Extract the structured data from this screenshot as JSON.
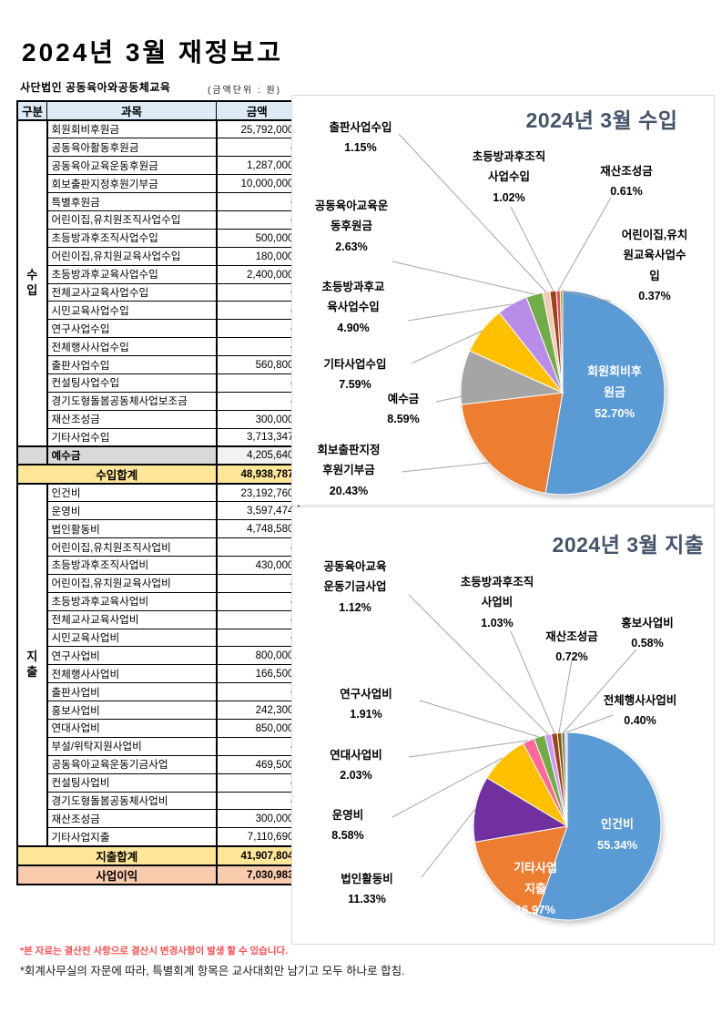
{
  "page": {
    "title": "2024년  3월  재정보고",
    "org_name": "사단법인  공동육아와공동체교육",
    "unit_note": "(금액단위 : 원)",
    "footnotes": [
      {
        "text": "*본 자료는 결산전 사항으로 결산시 변경사항이 발생 할 수 있습니다.",
        "color": "#FF4F4F"
      },
      {
        "text": "*회계사무실의 자문에 따라, 특별회계 항목은 교사대회만 남기고 모두 하나로 합침.",
        "color": "#1A1A1A"
      }
    ]
  },
  "table": {
    "headers": {
      "category": "구분",
      "account": "과목",
      "amount": "금액"
    },
    "income_group_label": "수입",
    "expense_group_label": "지출",
    "income_rows": [
      {
        "account": "회원회비후원금",
        "amount": "25,792,000"
      },
      {
        "account": "공동육아활동후원금",
        "amount": "-"
      },
      {
        "account": "공동육아교육운동후원금",
        "amount": "1,287,000"
      },
      {
        "account": "회보출판지정후원기부금",
        "amount": "10,000,000"
      },
      {
        "account": "특별후원금",
        "amount": "-"
      },
      {
        "account": "어린이집,유치원조직사업수입",
        "amount": "-"
      },
      {
        "account": "초등방과후조직사업수입",
        "amount": "500,000"
      },
      {
        "account": "어린이집,유치원교육사업수입",
        "amount": "180,000"
      },
      {
        "account": "초등방과후교육사업수입",
        "amount": "2,400,000"
      },
      {
        "account": "전체교사교육사업수입",
        "amount": "-"
      },
      {
        "account": "시민교육사업수입",
        "amount": "-"
      },
      {
        "account": "연구사업수입",
        "amount": "-"
      },
      {
        "account": "전체행사사업수입",
        "amount": "-"
      },
      {
        "account": "출판사업수입",
        "amount": "560,800"
      },
      {
        "account": "컨설팅사업수입",
        "amount": "-"
      },
      {
        "account": "경기도형돌봄공동체사업보조금",
        "amount": "-"
      },
      {
        "account": "재산조성금",
        "amount": "300,000"
      },
      {
        "account": "기타사업수입",
        "amount": "3,713,347"
      }
    ],
    "deposit_row": {
      "account": "예수금",
      "amount": "4,205,640"
    },
    "income_total": {
      "label": "수입합계",
      "amount": "48,938,787"
    },
    "expense_rows": [
      {
        "account": "인건비",
        "amount": "23,192,760"
      },
      {
        "account": "운영비",
        "amount": "3,597,474"
      },
      {
        "account": "법인활동비",
        "amount": "4,748,580"
      },
      {
        "account": "어린이집,유치원조직사업비",
        "amount": "-"
      },
      {
        "account": "초등방과후조직사업비",
        "amount": "430,000"
      },
      {
        "account": "어린이집,유치원교육사업비",
        "amount": "-"
      },
      {
        "account": "초등방과후교육사업비",
        "amount": "-"
      },
      {
        "account": "전체교사교육사업비",
        "amount": "-"
      },
      {
        "account": "시민교육사업비",
        "amount": "-"
      },
      {
        "account": "연구사업비",
        "amount": "800,000"
      },
      {
        "account": "전체행사사업비",
        "amount": "166,500"
      },
      {
        "account": "출판사업비",
        "amount": "-"
      },
      {
        "account": "홍보사업비",
        "amount": "242,300"
      },
      {
        "account": "연대사업비",
        "amount": "850,000"
      },
      {
        "account": "부설/위탁지원사업비",
        "amount": "-"
      },
      {
        "account": "공동육아교육운동기금사업",
        "amount": "469,500"
      },
      {
        "account": "컨설팅사업비",
        "amount": "-"
      },
      {
        "account": "경기도형돌봄공동체사업비",
        "amount": "-"
      },
      {
        "account": "재산조성금",
        "amount": "300,000"
      },
      {
        "account": "기타사업지출",
        "amount": "7,110,690"
      }
    ],
    "expense_total": {
      "label": "지출합계",
      "amount": "41,907,804"
    },
    "profit": {
      "label": "사업이익",
      "amount": "7,030,983"
    }
  },
  "chart_data": [
    {
      "type": "pie",
      "title": "2024년 3월 수입",
      "legend": "none",
      "slices": [
        {
          "name": "회원회비후원금",
          "pct": "52.70",
          "color": "#5B9BD5",
          "lines": [
            "회원회비후",
            "원금"
          ]
        },
        {
          "name": "회보출판지정후원기부금",
          "pct": "20.43",
          "color": "#ED7D31",
          "lines": [
            "회보출판지정",
            "후원기부금"
          ]
        },
        {
          "name": "예수금",
          "pct": "8.59",
          "color": "#A5A5A5",
          "lines": [
            "예수금"
          ]
        },
        {
          "name": "기타사업수입",
          "pct": "7.59",
          "color": "#FFC000",
          "lines": [
            "기타사업수입"
          ]
        },
        {
          "name": "초등방과후교육사업수입",
          "pct": "4.90",
          "color": "#B88CE8",
          "lines": [
            "초등방과후교",
            "육사업수입"
          ]
        },
        {
          "name": "공동육아교육운동후원금",
          "pct": "2.63",
          "color": "#70AD47",
          "lines": [
            "공동육아교육운",
            "동후원금"
          ]
        },
        {
          "name": "출판사업수입",
          "pct": "1.15",
          "color": "#F4C7B8",
          "lines": [
            "출판사업수입"
          ]
        },
        {
          "name": "초등방과후조직사업수입",
          "pct": "1.02",
          "color": "#9E4417",
          "lines": [
            "초등방과후조직",
            "사업수입"
          ]
        },
        {
          "name": "재산조성금",
          "pct": "0.61",
          "color": "#EA4A69",
          "lines": [
            "재산조성금"
          ]
        },
        {
          "name": "어린이집,유치원교육사업수입",
          "pct": "0.37",
          "color": "#AFA100",
          "lines": [
            "어린이집,유치",
            "원교육사업수",
            "입"
          ]
        }
      ]
    },
    {
      "type": "pie",
      "title": "2024년 3월 지출",
      "legend": "none",
      "slices": [
        {
          "name": "인건비",
          "pct": "55.34",
          "color": "#5B9BD5",
          "lines": [
            "인건비"
          ]
        },
        {
          "name": "기타사업지출",
          "pct": "16.97",
          "color": "#ED7D31",
          "lines": [
            "기타사업",
            "지출"
          ]
        },
        {
          "name": "법인활동비",
          "pct": "11.33",
          "color": "#7030A0",
          "lines": [
            "법인활동비"
          ]
        },
        {
          "name": "운영비",
          "pct": "8.58",
          "color": "#FFC000",
          "lines": [
            "운영비"
          ]
        },
        {
          "name": "연대사업비",
          "pct": "2.03",
          "color": "#FF6699",
          "lines": [
            "연대사업비"
          ]
        },
        {
          "name": "연구사업비",
          "pct": "1.91",
          "color": "#70AD47",
          "lines": [
            "연구사업비"
          ]
        },
        {
          "name": "공동육아교육운동기금사업",
          "pct": "1.12",
          "color": "#CC99FF",
          "lines": [
            "공동육아교육",
            "운동기금사업"
          ]
        },
        {
          "name": "초등방과후조직사업비",
          "pct": "1.03",
          "color": "#9E4417",
          "lines": [
            "초등방과후조직",
            "사업비"
          ]
        },
        {
          "name": "재산조성금",
          "pct": "0.72",
          "color": "#7F6000",
          "lines": [
            "재산조성금"
          ]
        },
        {
          "name": "홍보사업비",
          "pct": "0.58",
          "color": "#7B7B7B",
          "lines": [
            "홍보사업비"
          ]
        },
        {
          "name": "전체행사사업비",
          "pct": "0.40",
          "color": "#CFCDCD",
          "lines": [
            "전체행사사업비"
          ]
        }
      ]
    }
  ]
}
